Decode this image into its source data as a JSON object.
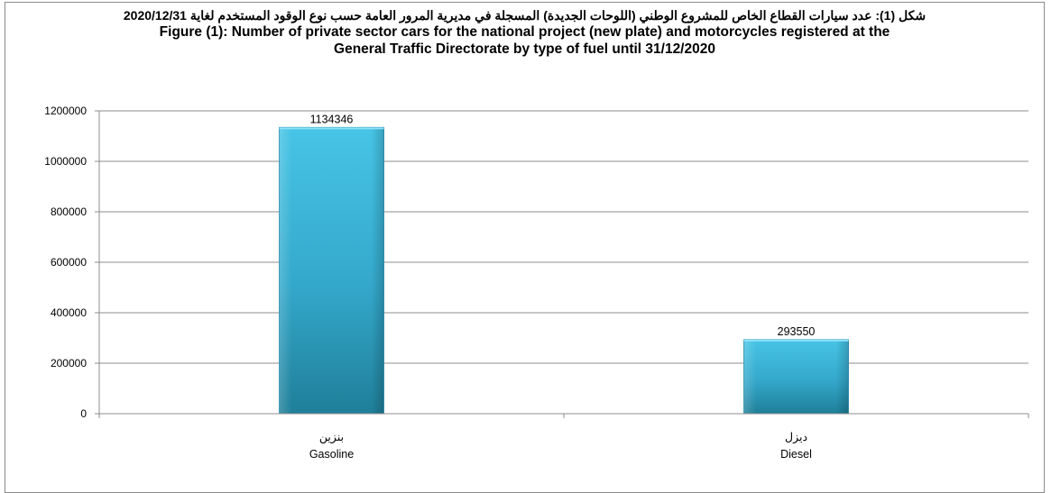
{
  "chart_data": {
    "type": "bar",
    "title_ar": "شكل (1): عدد سيارات القطاع الخاص للمشروع الوطني (اللوحات الجديدة) المسجلة  في مديرية المرور العامة حسب نوع الوقود المستخدم لغاية 2020/12/31",
    "title_en_line1": "Figure (1):  Number of private sector cars for the national project (new plate) and motorcycles registered at the",
    "title_en_line2": "General Traffic Directorate by type of  fuel until 31/12/2020",
    "categories": [
      {
        "ar": "بنزين",
        "en": "Gasoline"
      },
      {
        "ar": "ديزل",
        "en": "Diesel"
      }
    ],
    "values": [
      1134346,
      293550
    ],
    "data_labels": [
      "1134346",
      "293550"
    ],
    "ylim": [
      0,
      1200000
    ],
    "yticks": [
      0,
      200000,
      400000,
      600000,
      800000,
      1000000,
      1200000
    ],
    "ytick_labels": [
      "0",
      "200000",
      "400000",
      "600000",
      "800000",
      "1000000",
      "1200000"
    ],
    "grid": true,
    "bar_color": "#3fb6d8",
    "bar_color_dark": "#1e7e97",
    "grid_color": "#8c8c8c"
  }
}
